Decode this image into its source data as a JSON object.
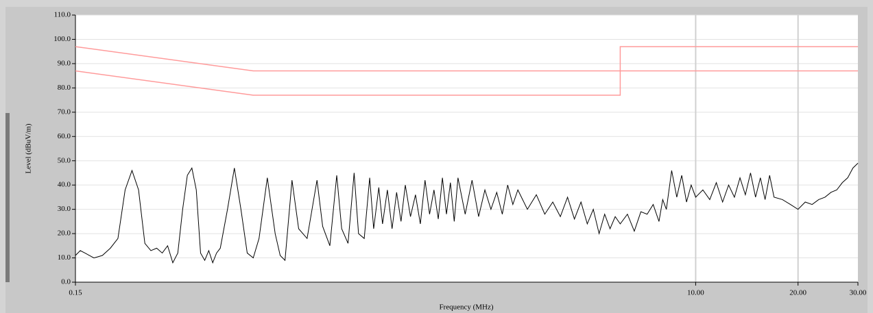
{
  "chart_data": {
    "type": "line",
    "xlabel": "Frequency (MHz)",
    "ylabel": "Level (dBuV/m)",
    "xscale": "log",
    "xlim": [
      0.15,
      30
    ],
    "ylim": [
      0,
      110
    ],
    "xticks": [
      0.15,
      {
        "value": 10,
        "label": "10.00"
      },
      {
        "value": 20,
        "label": "20.00"
      },
      {
        "value": 30,
        "label": "30.00"
      }
    ],
    "yticks": [
      {
        "value": 0,
        "label": "0.0"
      },
      {
        "value": 10,
        "label": "10.0"
      },
      {
        "value": 20,
        "label": "20.0"
      },
      {
        "value": 30,
        "label": "30.0"
      },
      {
        "value": 40,
        "label": "40.0"
      },
      {
        "value": 50,
        "label": "50.0"
      },
      {
        "value": 60,
        "label": "60.0"
      },
      {
        "value": 70,
        "label": "70.0"
      },
      {
        "value": 80,
        "label": "80.0"
      },
      {
        "value": 90,
        "label": "90.0"
      },
      {
        "value": 100,
        "label": "100.0"
      },
      {
        "value": 110,
        "label": "110.0"
      }
    ],
    "grid": true,
    "series": [
      {
        "color": "#ff9a9a",
        "x": [
          0.15,
          0.5,
          6,
          6,
          30
        ],
        "values": [
          97,
          87,
          87,
          97,
          97
        ]
      },
      {
        "color": "#ff9a9a",
        "x": [
          0.15,
          0.5,
          6,
          6,
          30
        ],
        "values": [
          87,
          77,
          77,
          87,
          87
        ]
      },
      {
        "color": "#000000",
        "x": [
          0.15,
          0.155,
          0.16,
          0.17,
          0.18,
          0.19,
          0.2,
          0.21,
          0.22,
          0.23,
          0.24,
          0.25,
          0.26,
          0.27,
          0.28,
          0.29,
          0.3,
          0.31,
          0.32,
          0.33,
          0.34,
          0.35,
          0.36,
          0.37,
          0.38,
          0.39,
          0.4,
          0.42,
          0.44,
          0.46,
          0.48,
          0.5,
          0.52,
          0.55,
          0.58,
          0.6,
          0.62,
          0.65,
          0.68,
          0.72,
          0.77,
          0.8,
          0.84,
          0.88,
          0.91,
          0.95,
          0.99,
          1.02,
          1.06,
          1.1,
          1.13,
          1.17,
          1.2,
          1.24,
          1.28,
          1.32,
          1.36,
          1.4,
          1.45,
          1.5,
          1.55,
          1.6,
          1.65,
          1.7,
          1.75,
          1.8,
          1.85,
          1.9,
          1.95,
          2.0,
          2.1,
          2.2,
          2.3,
          2.4,
          2.5,
          2.6,
          2.7,
          2.8,
          2.9,
          3.0,
          3.2,
          3.4,
          3.6,
          3.8,
          4.0,
          4.2,
          4.4,
          4.6,
          4.8,
          5.0,
          5.2,
          5.4,
          5.6,
          5.8,
          6.0,
          6.3,
          6.6,
          6.9,
          7.2,
          7.5,
          7.8,
          8.0,
          8.2,
          8.5,
          8.8,
          9.1,
          9.4,
          9.7,
          10.0,
          10.5,
          11.0,
          11.5,
          12.0,
          12.5,
          13.0,
          13.5,
          14.0,
          14.5,
          15.0,
          15.5,
          16.0,
          16.5,
          17.0,
          18.0,
          19.0,
          20.0,
          21.0,
          22.0,
          23.0,
          24.0,
          25.0,
          26.0,
          27.0,
          28.0,
          29.0,
          30.0
        ],
        "values": [
          11,
          13,
          12,
          10,
          11,
          14,
          18,
          38,
          46,
          38,
          16,
          13,
          14,
          12,
          15,
          8,
          12,
          30,
          44,
          47,
          38,
          12,
          9,
          13,
          8,
          12,
          14,
          30,
          47,
          30,
          12,
          10,
          18,
          43,
          20,
          11,
          9,
          42,
          22,
          18,
          42,
          23,
          15,
          44,
          22,
          16,
          45,
          20,
          18,
          43,
          22,
          39,
          24,
          38,
          22,
          37,
          25,
          40,
          27,
          36,
          24,
          42,
          28,
          38,
          26,
          43,
          28,
          41,
          25,
          43,
          28,
          42,
          27,
          38,
          30,
          37,
          28,
          40,
          32,
          38,
          30,
          36,
          28,
          33,
          27,
          35,
          26,
          33,
          24,
          30,
          20,
          28,
          22,
          27,
          24,
          28,
          21,
          29,
          28,
          32,
          25,
          34,
          30,
          46,
          35,
          44,
          33,
          40,
          35,
          38,
          34,
          41,
          33,
          40,
          35,
          43,
          36,
          45,
          35,
          43,
          34,
          44,
          35,
          34,
          32,
          30,
          33,
          32,
          34,
          35,
          37,
          38,
          41,
          43,
          47,
          49
        ]
      }
    ]
  }
}
